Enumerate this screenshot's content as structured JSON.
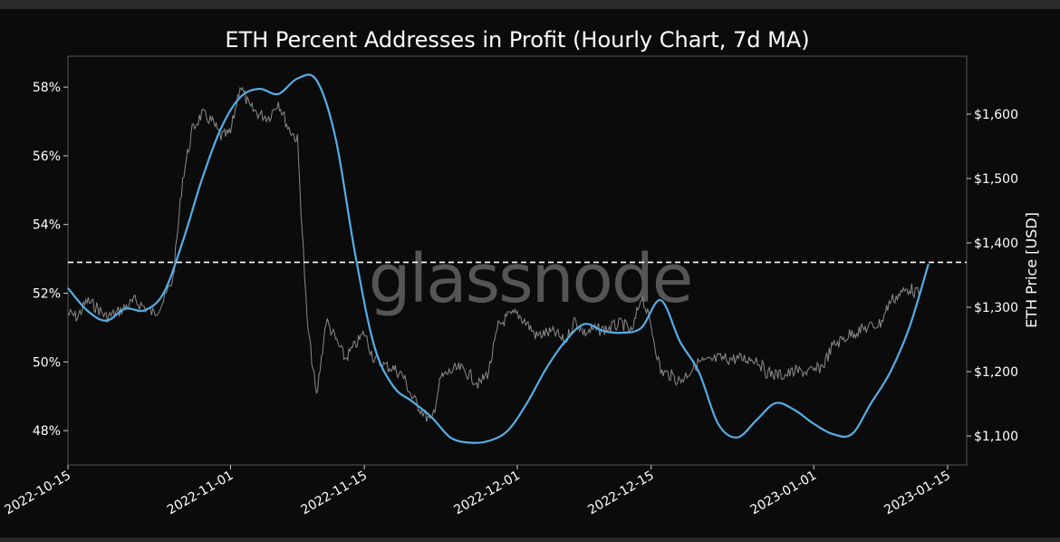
{
  "chart_data": {
    "type": "line",
    "title": "ETH Percent Addresses in Profit (Hourly Chart, 7d MA)",
    "watermark": "glassnode",
    "y_left": {
      "label": "",
      "range": [
        47.0,
        58.9
      ],
      "ticks": [
        48,
        50,
        52,
        54,
        56,
        58
      ],
      "tick_labels": [
        "48%",
        "50%",
        "52%",
        "54%",
        "56%",
        "58%"
      ]
    },
    "y_right": {
      "label": "ETH Price [USD]",
      "range": [
        1055,
        1690
      ],
      "ticks": [
        1100,
        1200,
        1300,
        1400,
        1500,
        1600
      ],
      "tick_labels": [
        "$1,100",
        "$1,200",
        "$1,300",
        "$1,400",
        "$1,500",
        "$1,600"
      ]
    },
    "x_axis": {
      "range": [
        "2022-10-15",
        "2023-01-17"
      ],
      "ticks": [
        "2022-10-15",
        "2022-11-01",
        "2022-11-15",
        "2022-12-01",
        "2022-12-15",
        "2023-01-01",
        "2023-01-15"
      ],
      "tick_labels": [
        "2022-10-15",
        "2022-11-01",
        "2022-11-15",
        "2022-12-01",
        "2022-12-15",
        "2023-01-01",
        "2023-01-15"
      ]
    },
    "reference_line": {
      "axis": "left",
      "value": 52.9,
      "style": "dashed",
      "color": "#ffffff"
    },
    "grid": false,
    "series": [
      {
        "axis": "left",
        "color": "#56aee6",
        "x": [
          "2022-10-15",
          "2022-10-17",
          "2022-10-19",
          "2022-10-21",
          "2022-10-23",
          "2022-10-25",
          "2022-10-27",
          "2022-10-29",
          "2022-10-31",
          "2022-11-02",
          "2022-11-04",
          "2022-11-06",
          "2022-11-08",
          "2022-11-10",
          "2022-11-12",
          "2022-11-14",
          "2022-11-16",
          "2022-11-18",
          "2022-11-20",
          "2022-11-22",
          "2022-11-24",
          "2022-11-26",
          "2022-11-28",
          "2022-11-30",
          "2022-12-02",
          "2022-12-04",
          "2022-12-06",
          "2022-12-08",
          "2022-12-10",
          "2022-12-12",
          "2022-12-14",
          "2022-12-16",
          "2022-12-18",
          "2022-12-20",
          "2022-12-22",
          "2022-12-24",
          "2022-12-26",
          "2022-12-28",
          "2022-12-30",
          "2023-01-01",
          "2023-01-03",
          "2023-01-05",
          "2023-01-07",
          "2023-01-09",
          "2023-01-11",
          "2023-01-13"
        ],
        "y": [
          52.15,
          51.5,
          51.2,
          51.55,
          51.5,
          52.0,
          53.5,
          55.3,
          56.8,
          57.7,
          57.95,
          57.8,
          58.25,
          58.2,
          56.5,
          53.2,
          50.5,
          49.3,
          48.85,
          48.4,
          47.8,
          47.65,
          47.7,
          48.0,
          48.8,
          49.8,
          50.6,
          51.1,
          50.9,
          50.85,
          51.0,
          51.8,
          50.6,
          49.7,
          48.2,
          47.8,
          48.3,
          48.8,
          48.6,
          48.2,
          47.9,
          47.9,
          48.8,
          49.7,
          51.0,
          52.85
        ]
      },
      {
        "axis": "right",
        "color": "#8a8a8a",
        "x": [
          "2022-10-15",
          "2022-10-16",
          "2022-10-17",
          "2022-10-18",
          "2022-10-19",
          "2022-10-20",
          "2022-10-21",
          "2022-10-22",
          "2022-10-23",
          "2022-10-24",
          "2022-10-25",
          "2022-10-26",
          "2022-10-27",
          "2022-10-28",
          "2022-10-29",
          "2022-10-30",
          "2022-10-31",
          "2022-11-01",
          "2022-11-02",
          "2022-11-03",
          "2022-11-04",
          "2022-11-05",
          "2022-11-06",
          "2022-11-07",
          "2022-11-08",
          "2022-11-09",
          "2022-11-10",
          "2022-11-11",
          "2022-11-12",
          "2022-11-13",
          "2022-11-14",
          "2022-11-15",
          "2022-11-16",
          "2022-11-17",
          "2022-11-18",
          "2022-11-19",
          "2022-11-20",
          "2022-11-21",
          "2022-11-22",
          "2022-11-23",
          "2022-11-24",
          "2022-11-25",
          "2022-11-26",
          "2022-11-27",
          "2022-11-28",
          "2022-11-29",
          "2022-11-30",
          "2022-12-01",
          "2022-12-02",
          "2022-12-03",
          "2022-12-04",
          "2022-12-05",
          "2022-12-06",
          "2022-12-07",
          "2022-12-08",
          "2022-12-09",
          "2022-12-10",
          "2022-12-11",
          "2022-12-12",
          "2022-12-13",
          "2022-12-14",
          "2022-12-15",
          "2022-12-16",
          "2022-12-17",
          "2022-12-18",
          "2022-12-19",
          "2022-12-20",
          "2022-12-21",
          "2022-12-22",
          "2022-12-23",
          "2022-12-24",
          "2022-12-25",
          "2022-12-26",
          "2022-12-27",
          "2022-12-28",
          "2022-12-29",
          "2022-12-30",
          "2022-12-31",
          "2023-01-01",
          "2023-01-02",
          "2023-01-03",
          "2023-01-04",
          "2023-01-05",
          "2023-01-06",
          "2023-01-07",
          "2023-01-08",
          "2023-01-09",
          "2023-01-10",
          "2023-01-11",
          "2023-01-12"
        ],
        "y": [
          1290,
          1285,
          1310,
          1300,
          1285,
          1290,
          1300,
          1310,
          1300,
          1290,
          1310,
          1345,
          1500,
          1575,
          1600,
          1590,
          1565,
          1570,
          1645,
          1610,
          1600,
          1595,
          1620,
          1580,
          1560,
          1280,
          1160,
          1280,
          1250,
          1220,
          1240,
          1260,
          1220,
          1210,
          1205,
          1195,
          1160,
          1140,
          1120,
          1190,
          1200,
          1205,
          1195,
          1180,
          1200,
          1270,
          1285,
          1290,
          1275,
          1255,
          1260,
          1260,
          1245,
          1280,
          1260,
          1265,
          1265,
          1270,
          1275,
          1260,
          1320,
          1270,
          1200,
          1195,
          1185,
          1200,
          1215,
          1215,
          1220,
          1220,
          1220,
          1220,
          1220,
          1200,
          1195,
          1195,
          1200,
          1200,
          1200,
          1210,
          1240,
          1250,
          1260,
          1265,
          1270,
          1275,
          1310,
          1320,
          1330,
          1320
        ]
      }
    ]
  }
}
